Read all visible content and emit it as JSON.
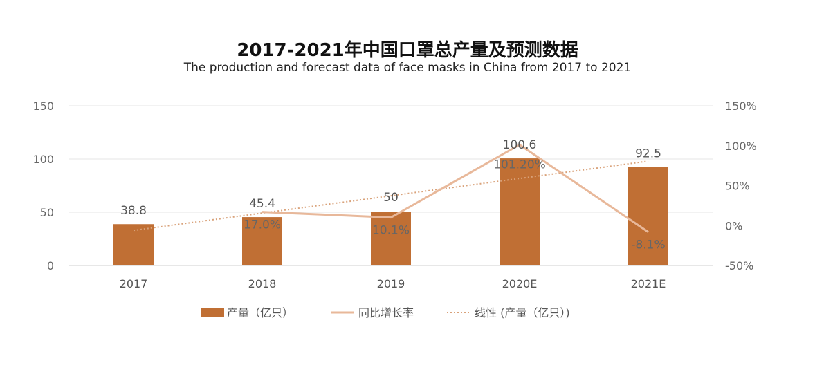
{
  "chart_data": {
    "type": "bar",
    "title": "2017-2021年中国口罩总产量及预测数据",
    "subtitle": "The production and forecast data of face masks in China from 2017 to 2021",
    "categories": [
      "2017",
      "2018",
      "2019",
      "2020E",
      "2021E"
    ],
    "series": [
      {
        "name": "产量（亿只）",
        "type": "bar",
        "axis": "left",
        "color": "#C06F34",
        "values": [
          38.8,
          45.4,
          50,
          100.6,
          92.5
        ],
        "labels": [
          "38.8",
          "45.4",
          "50",
          "100.6",
          "92.5"
        ]
      },
      {
        "name": "同比增长率",
        "type": "line",
        "axis": "right",
        "color": "#E8B89A",
        "values": [
          null,
          17.0,
          10.1,
          101.2,
          -8.1
        ],
        "labels": [
          "",
          "17.0%",
          "10.1%",
          "101.20%",
          "-8.1%"
        ]
      },
      {
        "name": "线性 (产量（亿只）)",
        "type": "trendline",
        "axis": "left",
        "color": "#D9A27A",
        "style": "dotted"
      }
    ],
    "left_axis": {
      "ylim": [
        0,
        150
      ],
      "ticks": [
        "0",
        "50",
        "100",
        "150"
      ],
      "tick_values": [
        0,
        50,
        100,
        150
      ]
    },
    "right_axis": {
      "ylim": [
        -50,
        150
      ],
      "ticks": [
        "-50%",
        "0%",
        "50%",
        "100%",
        "150%"
      ],
      "tick_values": [
        -50,
        0,
        50,
        100,
        150
      ]
    },
    "grid": true,
    "legend": "bottom"
  }
}
